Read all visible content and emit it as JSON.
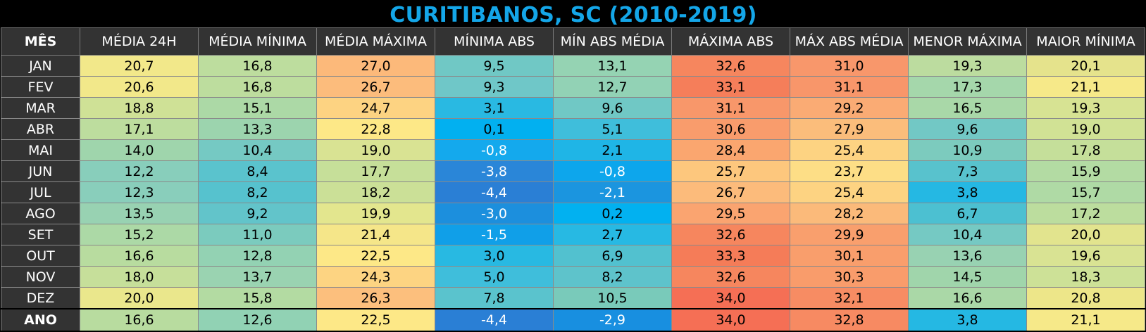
{
  "title": "CURITIBANOS, SC (2010-2019)",
  "columns": [
    "MÊS",
    "MÉDIA 24H",
    "MÉDIA MÍNIMA",
    "MÉDIA MÁXIMA",
    "MÍNIMA ABS",
    "MÍN ABS MÉDIA",
    "MÁXIMA ABS",
    "MÁX ABS MÉDIA",
    "MENOR MÁXIMA",
    "MAIOR MÍNIMA"
  ],
  "rows": [
    {
      "month": "JAN",
      "values": [
        "20,7",
        "16,8",
        "27,0",
        "9,5",
        "13,1",
        "32,6",
        "31,0",
        "19,3",
        "20,1"
      ],
      "colors": [
        "#f2e88a",
        "#bddd9e",
        "#fcb97a",
        "#70c8c5",
        "#95d3b3",
        "#f6865e",
        "#f8976b",
        "#bcdc9f",
        "#e5e38c"
      ]
    },
    {
      "month": "FEV",
      "values": [
        "20,6",
        "16,8",
        "26,7",
        "9,3",
        "12,7",
        "33,1",
        "31,1",
        "17,3",
        "21,1"
      ],
      "colors": [
        "#f2e88a",
        "#bddd9e",
        "#fcbc7c",
        "#6fc7c8",
        "#92d2b5",
        "#f57e5a",
        "#f8966a",
        "#a5d7ab",
        "#f6e989"
      ]
    },
    {
      "month": "MAR",
      "values": [
        "18,8",
        "15,1",
        "24,7",
        "3,1",
        "9,6",
        "31,1",
        "29,2",
        "16,5",
        "19,3"
      ],
      "colors": [
        "#cfe196",
        "#acd9a6",
        "#fdd382",
        "#29b9e2",
        "#70c8c5",
        "#f8976a",
        "#faab74",
        "#a9d8a8",
        "#d7e393"
      ]
    },
    {
      "month": "ABR",
      "values": [
        "17,1",
        "13,3",
        "22,8",
        "0,1",
        "5,1",
        "30,6",
        "27,9",
        "9,6",
        "19,0"
      ],
      "colors": [
        "#bddd9e",
        "#9cd4ae",
        "#fde887",
        "#02b0f0",
        "#3fbedb",
        "#f99c6c",
        "#fbbd7b",
        "#72c8c5",
        "#d1e295"
      ]
    },
    {
      "month": "MAI",
      "values": [
        "14,0",
        "10,4",
        "19,0",
        "-0,8",
        "2,1",
        "28,4",
        "25,4",
        "10,9",
        "17,8"
      ],
      "colors": [
        "#9fd5ac",
        "#75c9c3",
        "#d9e393",
        "#14a9ed",
        "#1fb5e6",
        "#faa66f",
        "#fdd382",
        "#7ccbbe",
        "#c5df9a"
      ]
    },
    {
      "month": "JUN",
      "values": [
        "12,2",
        "8,4",
        "17,7",
        "-3,8",
        "-0,8",
        "25,7",
        "23,7",
        "7,3",
        "15,9"
      ],
      "colors": [
        "#88cebb",
        "#5ac3cd",
        "#c6df99",
        "#2a86d8",
        "#0da6ec",
        "#fdc77d",
        "#fdde86",
        "#58c2cd",
        "#b3dba3"
      ]
    },
    {
      "month": "JUL",
      "values": [
        "12,3",
        "8,2",
        "18,2",
        "-4,4",
        "-2,1",
        "26,7",
        "25,4",
        "3,8",
        "15,7"
      ],
      "colors": [
        "#89cebb",
        "#56c2ce",
        "#cbe097",
        "#2a7fd5",
        "#1b95df",
        "#fcbb7b",
        "#fdd382",
        "#25b8e3",
        "#afdaa5"
      ]
    },
    {
      "month": "AGO",
      "values": [
        "13,5",
        "9,2",
        "19,9",
        "-3,0",
        "0,2",
        "29,5",
        "28,2",
        "6,7",
        "17,2"
      ],
      "colors": [
        "#98d2b2",
        "#62c4ca",
        "#e3e68e",
        "#1c8fdd",
        "#02b1f0",
        "#faa470",
        "#fbba7a",
        "#4cc0d1",
        "#bcdd9e"
      ]
    },
    {
      "month": "SET",
      "values": [
        "15,2",
        "11,0",
        "21,4",
        "-1,5",
        "2,7",
        "32,6",
        "29,9",
        "10,4",
        "20,0"
      ],
      "colors": [
        "#acd9a6",
        "#7bcbbe",
        "#f5e689",
        "#109fe8",
        "#27b9e3",
        "#f6865e",
        "#f99f6d",
        "#75c9c3",
        "#e2e48e"
      ]
    },
    {
      "month": "OUT",
      "values": [
        "16,6",
        "12,8",
        "22,5",
        "3,0",
        "6,9",
        "33,3",
        "30,1",
        "13,6",
        "19,6"
      ],
      "colors": [
        "#b8dc9f",
        "#93d2b3",
        "#fde887",
        "#28b9e2",
        "#52c1cf",
        "#f57c58",
        "#f99e6c",
        "#98d2b2",
        "#d9e393"
      ]
    },
    {
      "month": "NOV",
      "values": [
        "18,0",
        "13,7",
        "24,3",
        "5,0",
        "8,2",
        "32,6",
        "30,3",
        "14,5",
        "18,3"
      ],
      "colors": [
        "#c6df9a",
        "#9ad3b1",
        "#fdd482",
        "#3fbedb",
        "#5ec3cb",
        "#f6865e",
        "#f99c6b",
        "#a0d5ab",
        "#cde197"
      ]
    },
    {
      "month": "DEZ",
      "values": [
        "20,0",
        "15,8",
        "26,3",
        "7,8",
        "10,5",
        "34,0",
        "32,1",
        "16,6",
        "20,8"
      ],
      "colors": [
        "#eae78c",
        "#b3dba2",
        "#fcbf7d",
        "#5ac3cd",
        "#79caba",
        "#f56f55",
        "#f78c63",
        "#aad8a7",
        "#ede689"
      ]
    }
  ],
  "total": {
    "month": "ANO",
    "values": [
      "16,6",
      "12,6",
      "22,5",
      "-4,4",
      "-2,9",
      "34,0",
      "32,8",
      "3,8",
      "21,1"
    ],
    "colors": [
      "#b8dc9f",
      "#91d2b4",
      "#fde887",
      "#2a7fd5",
      "#188fe0",
      "#f56f55",
      "#f78a62",
      "#25b8e3",
      "#f6e989"
    ]
  },
  "light_text_colors": [
    "#2a86d8",
    "#2a7fd5",
    "#1c8fdd",
    "#1b95df",
    "#188fe0",
    "#109fe8",
    "#14a9ed",
    "#0da6ec"
  ]
}
